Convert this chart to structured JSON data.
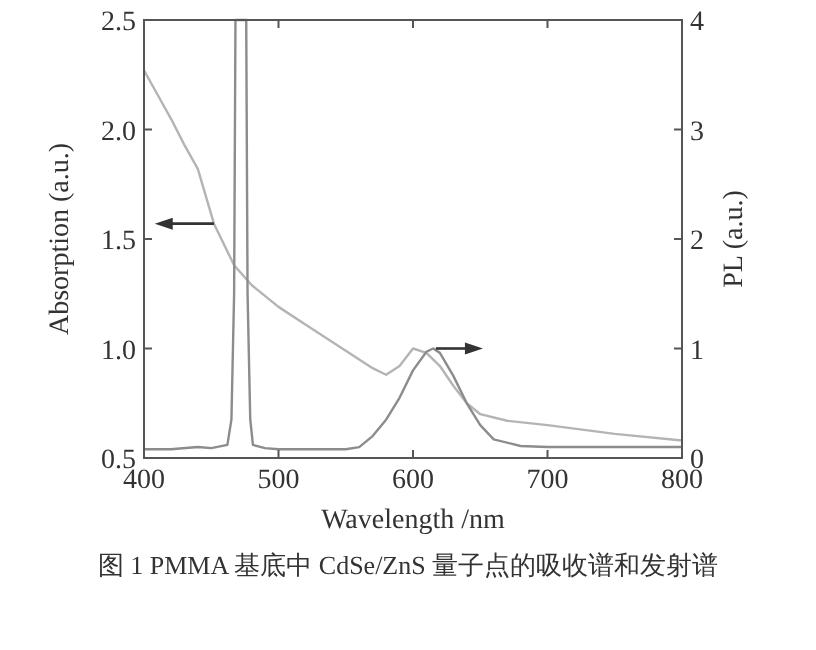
{
  "chart_data": {
    "type": "line",
    "xlabel": "Wavelength /nm",
    "ylabel": "Absorption (a.u.)",
    "y2label": "PL (a.u.)",
    "xlim": [
      400,
      800
    ],
    "xticks": [
      400,
      500,
      600,
      700,
      800
    ],
    "ylim": [
      0.5,
      2.5
    ],
    "yticks": [
      0.5,
      {
        "value": 1,
        "label": "1.0"
      },
      1.5,
      {
        "value": 2,
        "label": "2.0"
      },
      2.5
    ],
    "y2lim": [
      0,
      4
    ],
    "y2ticks": [
      0,
      1,
      2,
      3,
      4
    ],
    "series": [
      {
        "color": "#b4b4b4",
        "x": [
          400,
          410,
          420,
          430,
          440,
          452,
          467,
          480,
          500,
          520,
          550,
          570,
          580,
          590,
          600,
          610,
          620,
          630,
          640,
          650,
          670,
          700,
          750,
          800
        ],
        "values": [
          2.27,
          2.16,
          2.05,
          1.93,
          1.82,
          1.57,
          1.38,
          1.29,
          1.19,
          1.11,
          0.99,
          0.91,
          0.88,
          0.92,
          1.0,
          0.98,
          0.92,
          0.83,
          0.75,
          0.7,
          0.67,
          0.65,
          0.61,
          0.58
        ]
      },
      {
        "color": "#8c8c8c",
        "axis": "y2",
        "x": [
          400,
          420,
          440,
          450,
          462,
          465,
          467,
          468,
          476,
          477,
          479,
          481,
          490,
          500,
          520,
          550,
          560,
          570,
          580,
          590,
          600,
          610,
          615,
          620,
          630,
          640,
          650,
          660,
          680,
          700,
          750,
          800
        ],
        "values": [
          0.08,
          0.08,
          0.1,
          0.09,
          0.12,
          0.35,
          1.5,
          4,
          4,
          1.5,
          0.35,
          0.12,
          0.09,
          0.08,
          0.08,
          0.08,
          0.1,
          0.2,
          0.35,
          0.55,
          0.8,
          0.97,
          1.0,
          0.96,
          0.75,
          0.5,
          0.3,
          0.17,
          0.11,
          0.1,
          0.1,
          0.1
        ]
      }
    ],
    "annotations": [
      "图 1  PMMA 基底中 CdSe/ZnS 量子点的吸收谱和发射谱"
    ]
  }
}
